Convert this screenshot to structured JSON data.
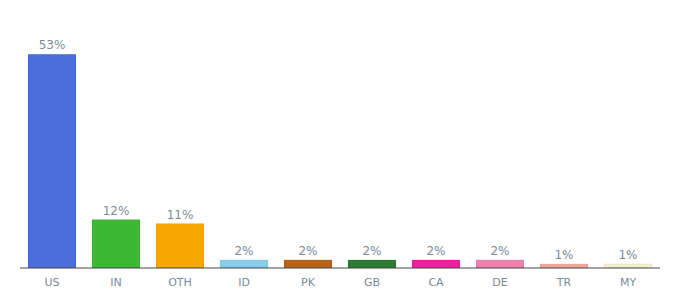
{
  "chart_data": {
    "type": "bar",
    "categories": [
      "US",
      "IN",
      "OTH",
      "ID",
      "PK",
      "GB",
      "CA",
      "DE",
      "TR",
      "MY"
    ],
    "values": [
      53,
      12,
      11,
      2,
      2,
      2,
      2,
      2,
      1,
      1
    ],
    "value_labels": [
      "53%",
      "12%",
      "11%",
      "2%",
      "2%",
      "2%",
      "2%",
      "2%",
      "1%",
      "1%"
    ],
    "colors": [
      "#4a6fdc",
      "#3cb832",
      "#f5a800",
      "#87ceeb",
      "#b8621a",
      "#2d7a35",
      "#f020a0",
      "#f080b0",
      "#f0a898",
      "#f5f0d0"
    ],
    "ylim": [
      0,
      60
    ],
    "grid": false,
    "data_labels": true,
    "tick_labels": "x"
  }
}
